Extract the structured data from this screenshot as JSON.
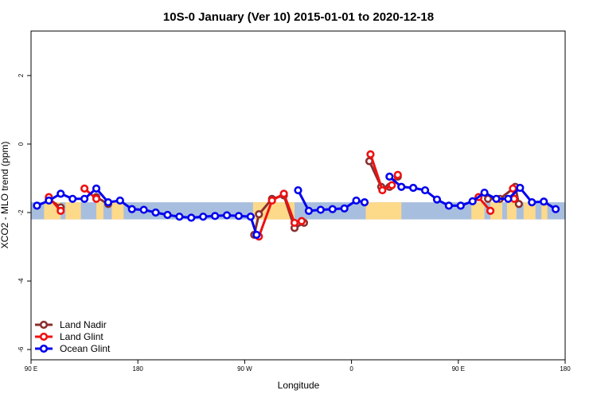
{
  "chart_data": {
    "type": "line",
    "title": "10S-0 January (Ver 10)   2015-01-01 to 2020-12-18",
    "xlabel": "Longitude",
    "ylabel": "XCO2 - MLO trend (ppm)",
    "xlim": [
      90,
      540
    ],
    "ylim": [
      -6.3,
      3.3
    ],
    "x_ticks": [
      {
        "value": 90,
        "label": "90 E"
      },
      {
        "value": 180,
        "label": "180"
      },
      {
        "value": 270,
        "label": "90 W"
      },
      {
        "value": 360,
        "label": "0"
      },
      {
        "value": 450,
        "label": "90 E"
      },
      {
        "value": 540,
        "label": "180"
      }
    ],
    "y_ticks": [
      {
        "value": 2,
        "label": "2"
      },
      {
        "value": 0,
        "label": "0"
      },
      {
        "value": -2,
        "label": "-2"
      },
      {
        "value": -4,
        "label": "-4"
      },
      {
        "value": -6,
        "label": "-6"
      }
    ],
    "map_band": {
      "y_range": [
        -2.2,
        -1.7
      ],
      "ocean_color": "#a8bede",
      "land_color": "#fdd98a",
      "land_segments": [
        [
          101,
          115
        ],
        [
          119,
          132
        ],
        [
          145,
          151
        ],
        [
          158,
          168
        ],
        [
          277,
          312
        ],
        [
          372,
          402
        ],
        [
          461,
          472
        ],
        [
          477,
          487
        ],
        [
          491,
          499
        ],
        [
          505,
          515
        ],
        [
          520,
          525
        ]
      ]
    },
    "legend_position": "bottom-left",
    "series": [
      {
        "name": "Land Nadir",
        "color": "#8b2f2f",
        "segments": [
          [
            [
              105,
              -1.6
            ],
            [
              115,
              -1.85
            ]
          ],
          [
            [
              145,
              -1.55
            ],
            [
              155,
              -1.75
            ]
          ],
          [
            [
              278,
              -2.65
            ],
            [
              282,
              -2.05
            ],
            [
              293,
              -1.6
            ],
            [
              303,
              -1.5
            ],
            [
              312,
              -2.45
            ],
            [
              320,
              -2.3
            ]
          ],
          [
            [
              375,
              -0.5
            ],
            [
              385,
              -1.25
            ],
            [
              392,
              -1.25
            ],
            [
              399,
              -0.95
            ]
          ],
          [
            [
              475,
              -1.6
            ],
            [
              485,
              -1.6
            ],
            [
              498,
              -1.25
            ],
            [
              501,
              -1.75
            ]
          ]
        ]
      },
      {
        "name": "Land Glint",
        "color": "#ee1111",
        "segments": [
          [
            [
              105,
              -1.55
            ],
            [
              115,
              -1.95
            ]
          ],
          [
            [
              135,
              -1.3
            ],
            [
              145,
              -1.6
            ]
          ],
          [
            [
              282,
              -2.7
            ],
            [
              293,
              -1.65
            ],
            [
              303,
              -1.45
            ],
            [
              312,
              -2.3
            ],
            [
              318,
              -2.25
            ]
          ],
          [
            [
              376,
              -0.3
            ],
            [
              386,
              -1.35
            ],
            [
              394,
              -1.2
            ],
            [
              399,
              -0.9
            ]
          ],
          [
            [
              467,
              -1.55
            ],
            [
              477,
              -1.95
            ]
          ],
          [
            [
              496,
              -1.3
            ],
            [
              497,
              -1.6
            ]
          ]
        ]
      },
      {
        "name": "Ocean Glint",
        "color": "#0000ee",
        "segments": [
          [
            [
              95,
              -1.8
            ],
            [
              105,
              -1.65
            ],
            [
              115,
              -1.45
            ],
            [
              125,
              -1.6
            ],
            [
              135,
              -1.6
            ],
            [
              145,
              -1.3
            ],
            [
              155,
              -1.7
            ],
            [
              165,
              -1.65
            ],
            [
              175,
              -1.9
            ],
            [
              185,
              -1.92
            ],
            [
              195,
              -2.0
            ],
            [
              205,
              -2.07
            ],
            [
              215,
              -2.12
            ],
            [
              225,
              -2.15
            ],
            [
              235,
              -2.12
            ],
            [
              245,
              -2.1
            ],
            [
              255,
              -2.08
            ],
            [
              265,
              -2.1
            ],
            [
              275,
              -2.12
            ],
            [
              280,
              -2.65
            ]
          ],
          [
            [
              315,
              -1.35
            ],
            [
              324,
              -1.95
            ],
            [
              334,
              -1.92
            ],
            [
              344,
              -1.9
            ],
            [
              354,
              -1.88
            ],
            [
              364,
              -1.65
            ],
            [
              371,
              -1.7
            ]
          ],
          [
            [
              392,
              -0.95
            ],
            [
              402,
              -1.25
            ],
            [
              412,
              -1.28
            ],
            [
              422,
              -1.35
            ],
            [
              432,
              -1.62
            ],
            [
              442,
              -1.8
            ],
            [
              452,
              -1.8
            ],
            [
              462,
              -1.67
            ],
            [
              472,
              -1.42
            ],
            [
              482,
              -1.6
            ],
            [
              492,
              -1.6
            ],
            [
              502,
              -1.28
            ],
            [
              512,
              -1.7
            ],
            [
              522,
              -1.68
            ],
            [
              532,
              -1.9
            ]
          ]
        ]
      }
    ]
  }
}
